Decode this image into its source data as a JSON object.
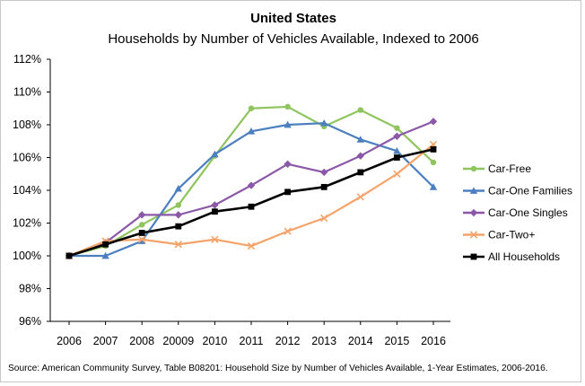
{
  "chart_data": {
    "type": "line",
    "title": "United States",
    "subtitle": "Households  by Number  of Vehicles Available, Indexed to 2006",
    "xlabel": "",
    "ylabel": "",
    "categories": [
      "2006",
      "2007",
      "2008",
      "20009",
      "2010",
      "2011",
      "2012",
      "2013",
      "2014",
      "2015",
      "2016"
    ],
    "ylim": [
      96,
      112
    ],
    "yticks": [
      96,
      98,
      100,
      102,
      104,
      106,
      108,
      110,
      112
    ],
    "ytick_labels": [
      "96%",
      "98%",
      "100%",
      "102%",
      "104%",
      "106%",
      "108%",
      "110%",
      "112%"
    ],
    "grid": false,
    "legend_position": "right",
    "series": [
      {
        "name": "Car-Free",
        "color": "#8fc45f",
        "marker": "circle",
        "values": [
          100.0,
          100.6,
          101.9,
          103.1,
          106.1,
          109.0,
          109.1,
          107.9,
          108.9,
          107.8,
          105.7
        ]
      },
      {
        "name": "Car-One Families",
        "color": "#4b7fbf",
        "marker": "triangle",
        "values": [
          100.0,
          100.0,
          100.9,
          104.1,
          106.2,
          107.6,
          108.0,
          108.1,
          107.1,
          106.4,
          104.2
        ]
      },
      {
        "name": "Car-One Singles",
        "color": "#8b58a8",
        "marker": "diamond",
        "values": [
          100.0,
          100.8,
          102.5,
          102.5,
          103.1,
          104.3,
          105.6,
          105.1,
          106.1,
          107.3,
          108.2
        ]
      },
      {
        "name": "Car-Two+",
        "color": "#f4a46a",
        "marker": "x",
        "values": [
          100.0,
          100.9,
          101.0,
          100.7,
          101.0,
          100.6,
          101.5,
          102.3,
          103.6,
          105.0,
          106.8
        ]
      },
      {
        "name": "All Households",
        "color": "#000000",
        "marker": "square",
        "values": [
          100.0,
          100.7,
          101.4,
          101.8,
          102.7,
          103.0,
          103.9,
          104.2,
          105.1,
          106.0,
          106.5
        ]
      }
    ],
    "source": "Source: American Community Survey, Table B08201: Household Size by Number of Vehicles Available, 1-Year Estimates, 2006-2016."
  }
}
